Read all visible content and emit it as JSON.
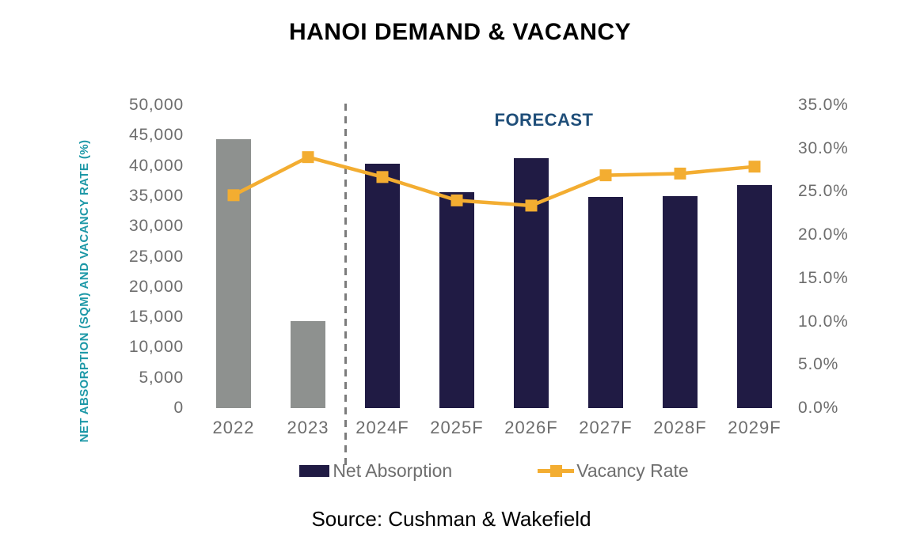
{
  "title": "HANOI DEMAND & VACANCY",
  "source": "Source: Cushman & Wakefield",
  "legend": {
    "net_absorption": "Net Absorption",
    "vacancy_rate": "Vacancy Rate"
  },
  "colors": {
    "historical_bar": "#8e918f",
    "forecast_bar": "#201b44",
    "vacancy_line": "#f3ad31",
    "axis_title_teal": "#1d98a7",
    "forecast_label_navy": "#1f4e79",
    "tick_text": "#6d6d6d",
    "legend_text": "#6e6e6e",
    "divider_gray": "#7c7c7c"
  },
  "chart_data": {
    "type": "bar",
    "subtype": "bar+line combo, dual axis",
    "title": "HANOI DEMAND & VACANCY",
    "categories": [
      "2022",
      "2023",
      "2024F",
      "2025F",
      "2026F",
      "2027F",
      "2028F",
      "2029F"
    ],
    "series": [
      {
        "name": "Net Absorption",
        "type": "bar",
        "axis": "left",
        "values": [
          44400,
          14300,
          40400,
          35600,
          41200,
          34800,
          35000,
          36800
        ],
        "bar_style": [
          "historical",
          "historical",
          "forecast",
          "forecast",
          "forecast",
          "forecast",
          "forecast",
          "forecast"
        ]
      },
      {
        "name": "Vacancy Rate",
        "type": "line",
        "axis": "right",
        "values": [
          24.6,
          29.0,
          26.7,
          24.0,
          23.4,
          26.9,
          27.1,
          27.9
        ]
      }
    ],
    "left_axis": {
      "title": "NET ABSORPTION (SQM) AND VACANCY RATE (%)",
      "min": 0,
      "max": 50000,
      "step": 5000,
      "tick_labels": [
        "0",
        "5,000",
        "10,000",
        "15,000",
        "20,000",
        "25,000",
        "30,000",
        "35,000",
        "40,000",
        "45,000",
        "50,000"
      ]
    },
    "right_axis": {
      "min": 0,
      "max": 35,
      "step": 5,
      "tick_labels": [
        "0.0%",
        "5.0%",
        "10.0%",
        "15.0%",
        "20.0%",
        "25.0%",
        "30.0%",
        "35.0%"
      ]
    },
    "forecast": {
      "label": "FORECAST",
      "start_index": 2
    },
    "grid": false,
    "legend_position": "bottom"
  }
}
